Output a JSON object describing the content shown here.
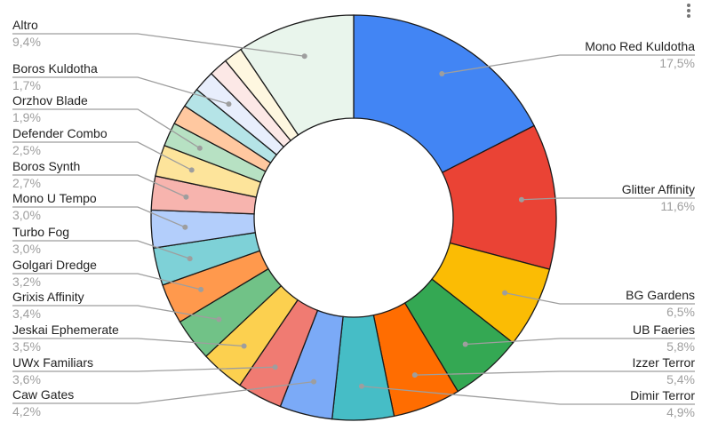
{
  "menu_icon": "more-vert-icon",
  "chart_data": {
    "type": "pie",
    "donut": true,
    "title": "",
    "start": "top",
    "direction": "clockwise",
    "slices": [
      {
        "label": "Mono Red Kuldotha",
        "value": 17.5,
        "display": "17,5%",
        "color": "#4285f4",
        "side": "right"
      },
      {
        "label": "Glitter Affinity",
        "value": 11.6,
        "display": "11,6%",
        "color": "#ea4335",
        "side": "right"
      },
      {
        "label": "BG Gardens",
        "value": 6.5,
        "display": "6,5%",
        "color": "#fbbc04",
        "side": "right"
      },
      {
        "label": "UB Faeries",
        "value": 5.8,
        "display": "5,8%",
        "color": "#34a853",
        "side": "right"
      },
      {
        "label": "Izzer Terror",
        "value": 5.4,
        "display": "5,4%",
        "color": "#ff6d01",
        "side": "right"
      },
      {
        "label": "Dimir Terror",
        "value": 4.9,
        "display": "4,9%",
        "color": "#46bdc6",
        "side": "right"
      },
      {
        "label": "Caw Gates",
        "value": 4.2,
        "display": "4,2%",
        "color": "#7baaf7",
        "side": "left"
      },
      {
        "label": "UWx Familiars",
        "value": 3.6,
        "display": "3,6%",
        "color": "#f07b72",
        "side": "left"
      },
      {
        "label": "Jeskai Ephemerate",
        "value": 3.5,
        "display": "3,5%",
        "color": "#fcd04f",
        "side": "left"
      },
      {
        "label": "Grixis Affinity",
        "value": 3.4,
        "display": "3,4%",
        "color": "#71c287",
        "side": "left"
      },
      {
        "label": "Golgari Dredge",
        "value": 3.2,
        "display": "3,2%",
        "color": "#ff994d",
        "side": "left"
      },
      {
        "label": "Turbo Fog",
        "value": 3.0,
        "display": "3,0%",
        "color": "#7ed1d7",
        "side": "left"
      },
      {
        "label": "Mono U Tempo",
        "value": 3.0,
        "display": "3,0%",
        "color": "#b3cefb",
        "side": "left"
      },
      {
        "label": "Boros Synth",
        "value": 2.7,
        "display": "2,7%",
        "color": "#f7b4ae",
        "side": "left"
      },
      {
        "label": "Defender Combo",
        "value": 2.5,
        "display": "2,5%",
        "color": "#fde49b",
        "side": "left"
      },
      {
        "label": "Orzhov Blade",
        "value": 1.9,
        "display": "1,9%",
        "color": "#b7e1c3",
        "side": "left"
      },
      {
        "label": null,
        "value": 1.6,
        "color": "#ffc8a0"
      },
      {
        "label": null,
        "value": 1.6,
        "color": "#b5e4e7"
      },
      {
        "label": "Boros Kuldotha",
        "value": 1.7,
        "display": "1,7%",
        "color": "#e8eefc",
        "side": "left"
      },
      {
        "label": null,
        "value": 1.5,
        "color": "#fce8e6"
      },
      {
        "label": null,
        "value": 1.5,
        "color": "#fef7e0"
      },
      {
        "label": "Altro",
        "value": 9.4,
        "display": "9,4%",
        "color": "#e9f5ec",
        "side": "left"
      }
    ]
  }
}
